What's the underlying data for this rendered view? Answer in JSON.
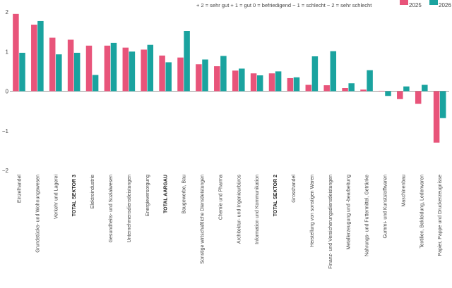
{
  "chart_data": {
    "type": "bar",
    "scale_note": "+ 2 = sehr gut   + 1 = gut   0 = befriedigend   − 1 = schlecht   − 2 = sehr schlecht",
    "ylim": [
      -2,
      2
    ],
    "yticks": [
      "2",
      "1",
      "0",
      "−1",
      "−2"
    ],
    "bold_categories": [
      "TOTAL SEKTOR 3",
      "TOTAL AARGAU",
      "TOTAL SEKTOR 2"
    ],
    "colors": {
      "2025": "#e8547a",
      "2026": "#1aa39f"
    },
    "categories": [
      "Einzelhandel",
      "Grundstücks- und Wohnungswesen",
      "Verkehr und Lagerei",
      "TOTAL SEKTOR 3",
      "Elektroindustrie",
      "Gesundheits- und Sozialwesen",
      "Unternehmensdienstleistungen",
      "Energieversorgung",
      "TOTAL AARGAU",
      "Baugewerbe, Bau",
      "Sonstige wirtschaftliche Dienstleistungen",
      "Chemie und Pharma",
      "Architektur- und Ingenieurbüros",
      "Information und Kommunikation",
      "TOTAL SEKTOR 2",
      "Grosshandel",
      "Herstellung von sonstigen Waren",
      "Finanz- und Versicherungsdienstleistungen",
      "Metallerzeugung und -bearbeitung",
      "Nahrungs- und Futtermittel, Getränke",
      "Gummi- und Kunststoffwaren",
      "Maschinenbau",
      "Textilien, Bekleidung, Lederwaren",
      "Papier, Pappe und Druckerzeugnisse"
    ],
    "series": [
      {
        "name": "2025",
        "values": [
          1.95,
          1.68,
          1.35,
          1.3,
          1.15,
          1.15,
          1.1,
          1.05,
          0.9,
          0.85,
          0.68,
          0.63,
          0.52,
          0.45,
          0.45,
          0.33,
          0.16,
          0.15,
          0.08,
          0.04,
          0.01,
          -0.2,
          -0.32,
          -1.3
        ]
      },
      {
        "name": "2026",
        "values": [
          0.97,
          1.77,
          0.93,
          0.97,
          0.41,
          1.22,
          1.0,
          1.17,
          0.73,
          1.52,
          0.8,
          0.89,
          0.57,
          0.4,
          0.5,
          0.35,
          0.88,
          1.01,
          0.2,
          0.53,
          -0.12,
          0.12,
          0.16,
          -0.68
        ]
      }
    ]
  }
}
